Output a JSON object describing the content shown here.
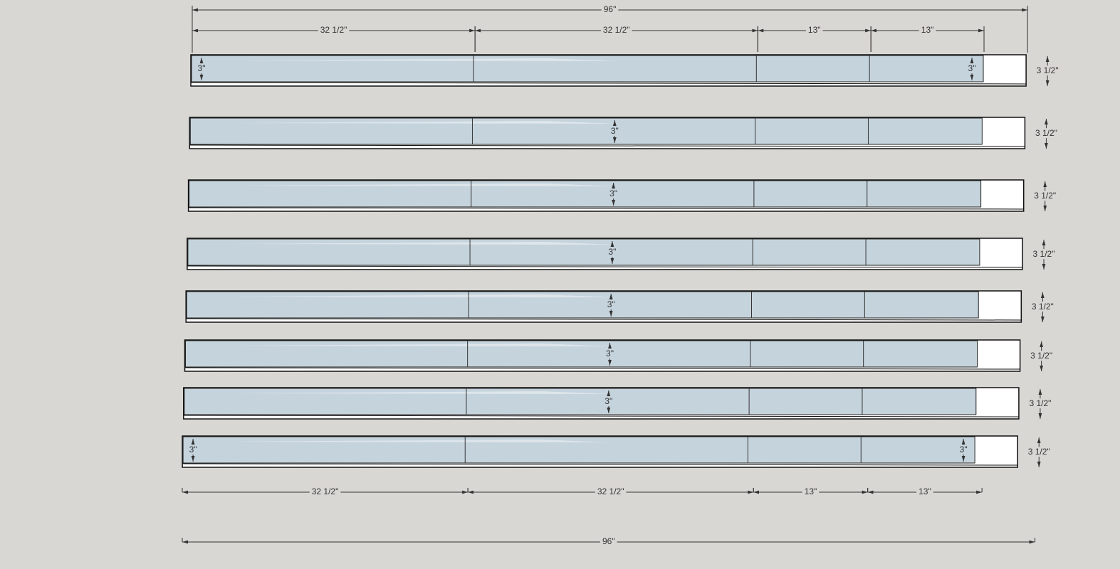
{
  "top_dimensions": {
    "overall": "96\"",
    "segments": [
      "32 1/2\"",
      "32 1/2\"",
      "13\"",
      "13\""
    ]
  },
  "boards": [
    {
      "width_label": "3 1/2\"",
      "rip_labels": [
        "3\"",
        "3\""
      ]
    },
    {
      "width_label": "3 1/2\"",
      "rip_labels": [
        "3\""
      ]
    },
    {
      "width_label": "3 1/2\"",
      "rip_labels": [
        "3\""
      ]
    },
    {
      "width_label": "3 1/2\"",
      "rip_labels": [
        "3\""
      ]
    },
    {
      "width_label": "3 1/2\"",
      "rip_labels": [
        "3\""
      ]
    },
    {
      "width_label": "3 1/2\"",
      "rip_labels": [
        "3\""
      ]
    },
    {
      "width_label": "3 1/2\"",
      "rip_labels": [
        "3\""
      ]
    },
    {
      "width_label": "3 1/2\"",
      "rip_labels": [
        "3\"",
        "3\""
      ]
    }
  ],
  "bottom_dimensions": {
    "overall": "96\"",
    "segments": [
      "32 1/2\"",
      "32 1/2\"",
      "13\"",
      "13\""
    ]
  }
}
